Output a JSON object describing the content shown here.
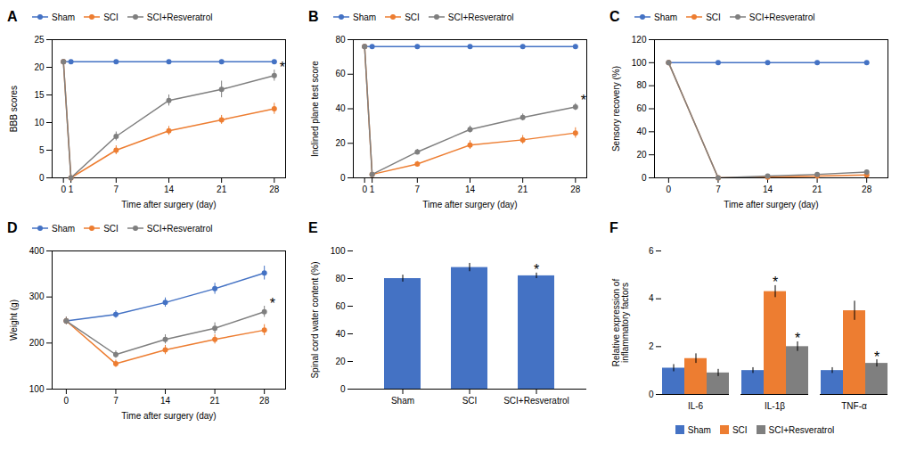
{
  "chart_data": [
    {
      "type": "line",
      "title": "A",
      "xlabel": "Time after surgery (day)",
      "ylabel": "BBB scores",
      "x": [
        0,
        1,
        7,
        14,
        21,
        28
      ],
      "marker": "circle",
      "series": [
        {
          "name": "Sham",
          "color": "#4472C4",
          "values": [
            21,
            21,
            21,
            21,
            21,
            21
          ],
          "errors": [
            0.3,
            0.3,
            0.3,
            0.3,
            0.3,
            0.3
          ]
        },
        {
          "name": "SCI",
          "color": "#ED7D31",
          "values": [
            21,
            0,
            5,
            8.5,
            10.5,
            12.5
          ],
          "errors": [
            0.3,
            0,
            0.8,
            0.8,
            0.8,
            1.0
          ]
        },
        {
          "name": "SCI+Resveratrol",
          "color": "#7F7F7F",
          "values": [
            21,
            0,
            7.5,
            14,
            16,
            18.5
          ],
          "errors": [
            0.3,
            0,
            0.8,
            1.0,
            1.5,
            1.0
          ]
        }
      ],
      "xlim": [
        -1.5,
        29.5
      ],
      "xticks": [
        0,
        1,
        7,
        14,
        21,
        28
      ],
      "ylim": [
        0,
        25
      ],
      "yticks": [
        0,
        5,
        10,
        15,
        20,
        25
      ],
      "legend": "top",
      "annotations": [
        {
          "text": "*",
          "series": "SCI+Resveratrol",
          "x": 28
        }
      ]
    },
    {
      "type": "line",
      "title": "B",
      "xlabel": "Time after surgery (day)",
      "ylabel": "Inclined plane test score",
      "x": [
        0,
        1,
        7,
        14,
        21,
        28
      ],
      "marker": "circle",
      "series": [
        {
          "name": "Sham",
          "color": "#4472C4",
          "values": [
            76,
            76,
            76,
            76,
            76,
            76
          ],
          "errors": [
            1.0,
            1.0,
            1.0,
            1.0,
            1.0,
            1.0
          ]
        },
        {
          "name": "SCI",
          "color": "#ED7D31",
          "values": [
            76,
            2,
            8,
            19,
            22,
            26
          ],
          "errors": [
            1.0,
            0.5,
            1.5,
            2.5,
            2.5,
            3.0
          ]
        },
        {
          "name": "SCI+Resveratrol",
          "color": "#7F7F7F",
          "values": [
            76,
            2,
            15,
            28,
            35,
            41
          ],
          "errors": [
            1.0,
            0.5,
            1.5,
            2.0,
            2.0,
            2.0
          ]
        }
      ],
      "xlim": [
        -1.5,
        29.5
      ],
      "xticks": [
        0,
        1,
        7,
        14,
        21,
        28
      ],
      "ylim": [
        0,
        80
      ],
      "yticks": [
        0,
        20,
        40,
        60,
        80
      ],
      "legend": "top",
      "annotations": [
        {
          "text": "*",
          "series": "SCI+Resveratrol",
          "x": 28
        }
      ]
    },
    {
      "type": "line",
      "title": "C",
      "xlabel": "Time after surgery (day)",
      "ylabel": "Sensory recovery (%)",
      "x": [
        0,
        7,
        14,
        21,
        28
      ],
      "marker": "circle",
      "series": [
        {
          "name": "Sham",
          "color": "#4472C4",
          "values": [
            100,
            100,
            100,
            100,
            100
          ],
          "errors": [
            1.0,
            1.0,
            1.0,
            1.0,
            1.0
          ]
        },
        {
          "name": "SCI",
          "color": "#ED7D31",
          "values": [
            100,
            0,
            0.5,
            1.5,
            2.5
          ],
          "errors": [
            1.0,
            0.3,
            0.5,
            0.5,
            0.5
          ]
        },
        {
          "name": "SCI+Resveratrol",
          "color": "#7F7F7F",
          "values": [
            100,
            0,
            1.5,
            3.0,
            5.0
          ],
          "errors": [
            1.0,
            0.3,
            0.5,
            0.5,
            0.8
          ]
        }
      ],
      "xlim": [
        -2,
        31
      ],
      "xticks": [
        0,
        7,
        14,
        21,
        28
      ],
      "ylim": [
        0,
        120
      ],
      "yticks": [
        0,
        20,
        40,
        60,
        80,
        100,
        120
      ],
      "legend": "top"
    },
    {
      "type": "line",
      "title": "D",
      "xlabel": "Time after surgery (day)",
      "ylabel": "Weight (g)",
      "x": [
        0,
        7,
        14,
        21,
        28
      ],
      "marker": "circle",
      "series": [
        {
          "name": "Sham",
          "color": "#4472C4",
          "values": [
            248,
            262,
            288,
            318,
            352
          ],
          "errors": [
            8,
            8,
            10,
            12,
            15
          ]
        },
        {
          "name": "SCI",
          "color": "#ED7D31",
          "values": [
            248,
            155,
            185,
            208,
            228
          ],
          "errors": [
            8,
            8,
            10,
            10,
            12
          ]
        },
        {
          "name": "SCI+Resveratrol",
          "color": "#7F7F7F",
          "values": [
            248,
            175,
            208,
            232,
            268
          ],
          "errors": [
            8,
            8,
            10,
            12,
            12
          ]
        }
      ],
      "xlim": [
        -2,
        31
      ],
      "xticks": [
        0,
        7,
        14,
        21,
        28
      ],
      "ylim": [
        100,
        400
      ],
      "yticks": [
        100,
        200,
        300,
        400
      ],
      "legend": "top",
      "annotations": [
        {
          "text": "*",
          "series": "SCI+Resveratrol",
          "x": 28
        }
      ]
    },
    {
      "type": "bar",
      "title": "E",
      "ylabel": "Spinal cord water content (%)",
      "categories": [
        "Sham",
        "SCI",
        "SCI+Resveratrol"
      ],
      "values": [
        80,
        88,
        82
      ],
      "errors": [
        2.5,
        3.0,
        2.0
      ],
      "color": "#4472C4",
      "ylim": [
        0,
        100
      ],
      "yticks": [
        0,
        20,
        40,
        60,
        80,
        100
      ],
      "annotations": [
        {
          "text": "*",
          "category": "SCI+Resveratrol"
        }
      ]
    },
    {
      "type": "bar",
      "title": "F",
      "ylabel": "Relative expression of\ninflammatory factors",
      "categories": [
        "IL-6",
        "IL-1β",
        "TNF-α"
      ],
      "series": [
        {
          "name": "Sham",
          "color": "#4472C4",
          "values": [
            1.1,
            1.0,
            1.0
          ],
          "errors": [
            0.15,
            0.12,
            0.12
          ]
        },
        {
          "name": "SCI",
          "color": "#ED7D31",
          "values": [
            1.5,
            4.3,
            3.5
          ],
          "errors": [
            0.2,
            0.25,
            0.4
          ]
        },
        {
          "name": "SCI+Resveratrol",
          "color": "#7F7F7F",
          "values": [
            0.9,
            2.0,
            1.3
          ],
          "errors": [
            0.15,
            0.2,
            0.15
          ]
        }
      ],
      "ylim": [
        0,
        6
      ],
      "yticks": [
        0,
        2,
        4,
        6
      ],
      "legend": "bottom",
      "annotations": [
        {
          "text": "*",
          "series": "SCI",
          "category": "IL-1β"
        },
        {
          "text": "*",
          "series": "SCI+Resveratrol",
          "category": "IL-1β"
        },
        {
          "text": "*",
          "series": "SCI+Resveratrol",
          "category": "TNF-α"
        }
      ]
    }
  ]
}
